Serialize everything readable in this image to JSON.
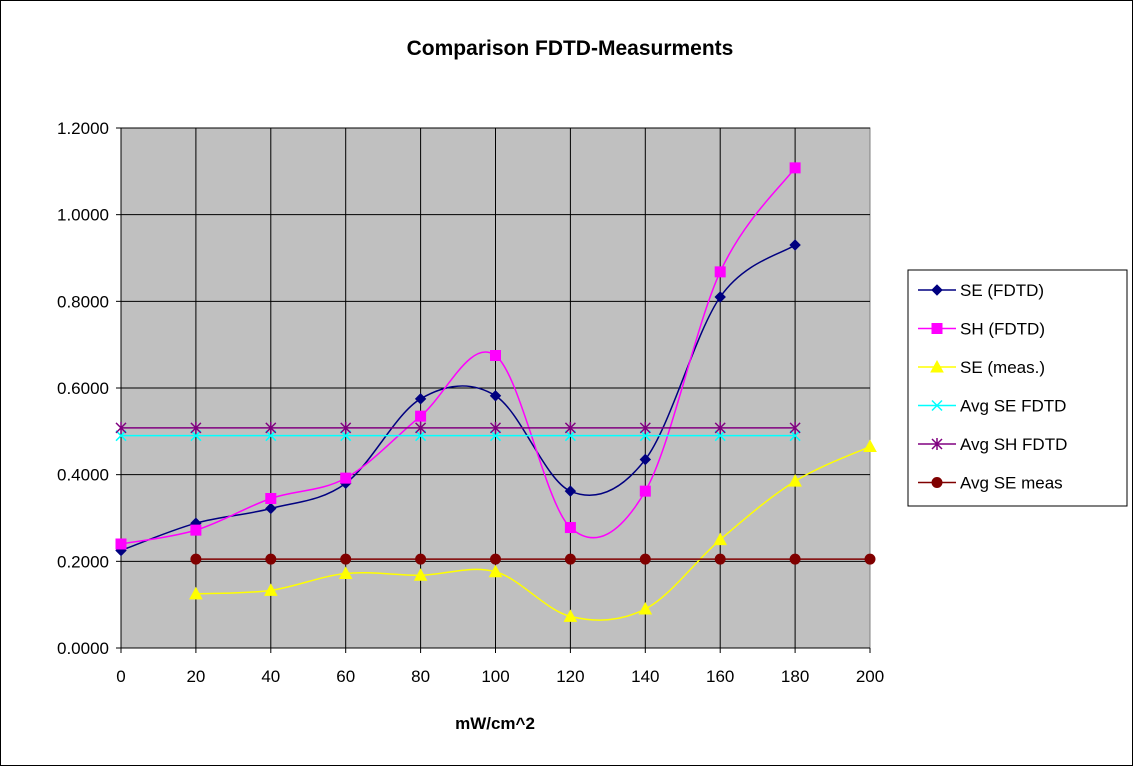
{
  "chart_data": {
    "type": "line",
    "title": "Comparison FDTD-Measurments",
    "xlabel": "mW/cm^2",
    "ylabel": "",
    "x": [
      0,
      20,
      40,
      60,
      80,
      100,
      120,
      140,
      160,
      180,
      200
    ],
    "x_tick_labels": [
      "0",
      "20",
      "40",
      "60",
      "80",
      "100",
      "120",
      "140",
      "160",
      "180",
      "200"
    ],
    "y_tick_labels": [
      "0.0000",
      "0.2000",
      "0.4000",
      "0.6000",
      "0.8000",
      "1.0000",
      "1.2000"
    ],
    "xlim": [
      0,
      200
    ],
    "ylim": [
      0,
      1.2
    ],
    "y_ticks": [
      0,
      0.2,
      0.4,
      0.6,
      0.8,
      1.0,
      1.2
    ],
    "grid": true,
    "plot_background": "#c0c0c0",
    "legend_position": "right",
    "series": [
      {
        "name": "SE (FDTD)",
        "color": "#000080",
        "marker": "diamond",
        "smooth": true,
        "values": [
          0.225,
          0.288,
          0.322,
          0.38,
          0.575,
          0.582,
          0.362,
          0.435,
          0.81,
          0.93,
          null
        ]
      },
      {
        "name": "SH (FDTD)",
        "color": "#ff00ff",
        "marker": "square",
        "smooth": true,
        "values": [
          0.24,
          0.272,
          0.345,
          0.392,
          0.535,
          0.675,
          0.278,
          0.362,
          0.868,
          1.108,
          null
        ]
      },
      {
        "name": "SE (meas.)",
        "color": "#ffff00",
        "marker": "triangle",
        "smooth": true,
        "values": [
          null,
          0.125,
          0.133,
          0.172,
          0.168,
          0.176,
          0.073,
          0.09,
          0.25,
          0.385,
          0.465
        ]
      },
      {
        "name": "Avg SE FDTD",
        "color": "#00ffff",
        "marker": "x",
        "smooth": false,
        "values": [
          0.49,
          0.49,
          0.49,
          0.49,
          0.49,
          0.49,
          0.49,
          0.49,
          0.49,
          0.49,
          null
        ]
      },
      {
        "name": "Avg SH FDTD",
        "color": "#800080",
        "marker": "star",
        "smooth": false,
        "values": [
          0.508,
          0.508,
          0.508,
          0.508,
          0.508,
          0.508,
          0.508,
          0.508,
          0.508,
          0.508,
          null
        ]
      },
      {
        "name": "Avg SE meas",
        "color": "#800000",
        "marker": "circle",
        "smooth": false,
        "values": [
          null,
          0.205,
          0.205,
          0.205,
          0.205,
          0.205,
          0.205,
          0.205,
          0.205,
          0.205,
          0.205
        ]
      }
    ]
  }
}
